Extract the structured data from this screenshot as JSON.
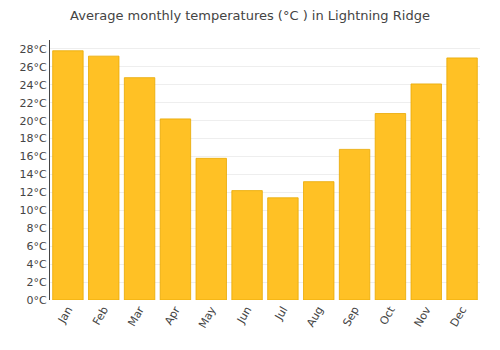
{
  "chart_data": {
    "type": "bar",
    "title": "Average monthly temperatures (°C ) in Lightning Ridge",
    "categories": [
      "Jan",
      "Feb",
      "Mar",
      "Apr",
      "May",
      "Jun",
      "Jul",
      "Aug",
      "Sep",
      "Oct",
      "Nov",
      "Dec"
    ],
    "values": [
      27.8,
      27.2,
      24.8,
      20.2,
      15.8,
      12.2,
      11.4,
      13.2,
      16.8,
      20.8,
      24.1,
      27.0
    ],
    "color": "#FFC125",
    "ylim": [
      0,
      29
    ],
    "yticks": [
      {
        "value": 0,
        "label": "0°C"
      },
      {
        "value": 2,
        "label": "2°C"
      },
      {
        "value": 4,
        "label": "4°C"
      },
      {
        "value": 6,
        "label": "6°C"
      },
      {
        "value": 8,
        "label": "8°C"
      },
      {
        "value": 10,
        "label": "10°C"
      },
      {
        "value": 12,
        "label": "12°C"
      },
      {
        "value": 14,
        "label": "14°C"
      },
      {
        "value": 16,
        "label": "16°C"
      },
      {
        "value": 18,
        "label": "18°C"
      },
      {
        "value": 20,
        "label": "20°C"
      },
      {
        "value": 22,
        "label": "22°C"
      },
      {
        "value": 24,
        "label": "24°C"
      },
      {
        "value": 26,
        "label": "26°C"
      },
      {
        "value": 28,
        "label": "28°C"
      }
    ],
    "grid": true
  }
}
